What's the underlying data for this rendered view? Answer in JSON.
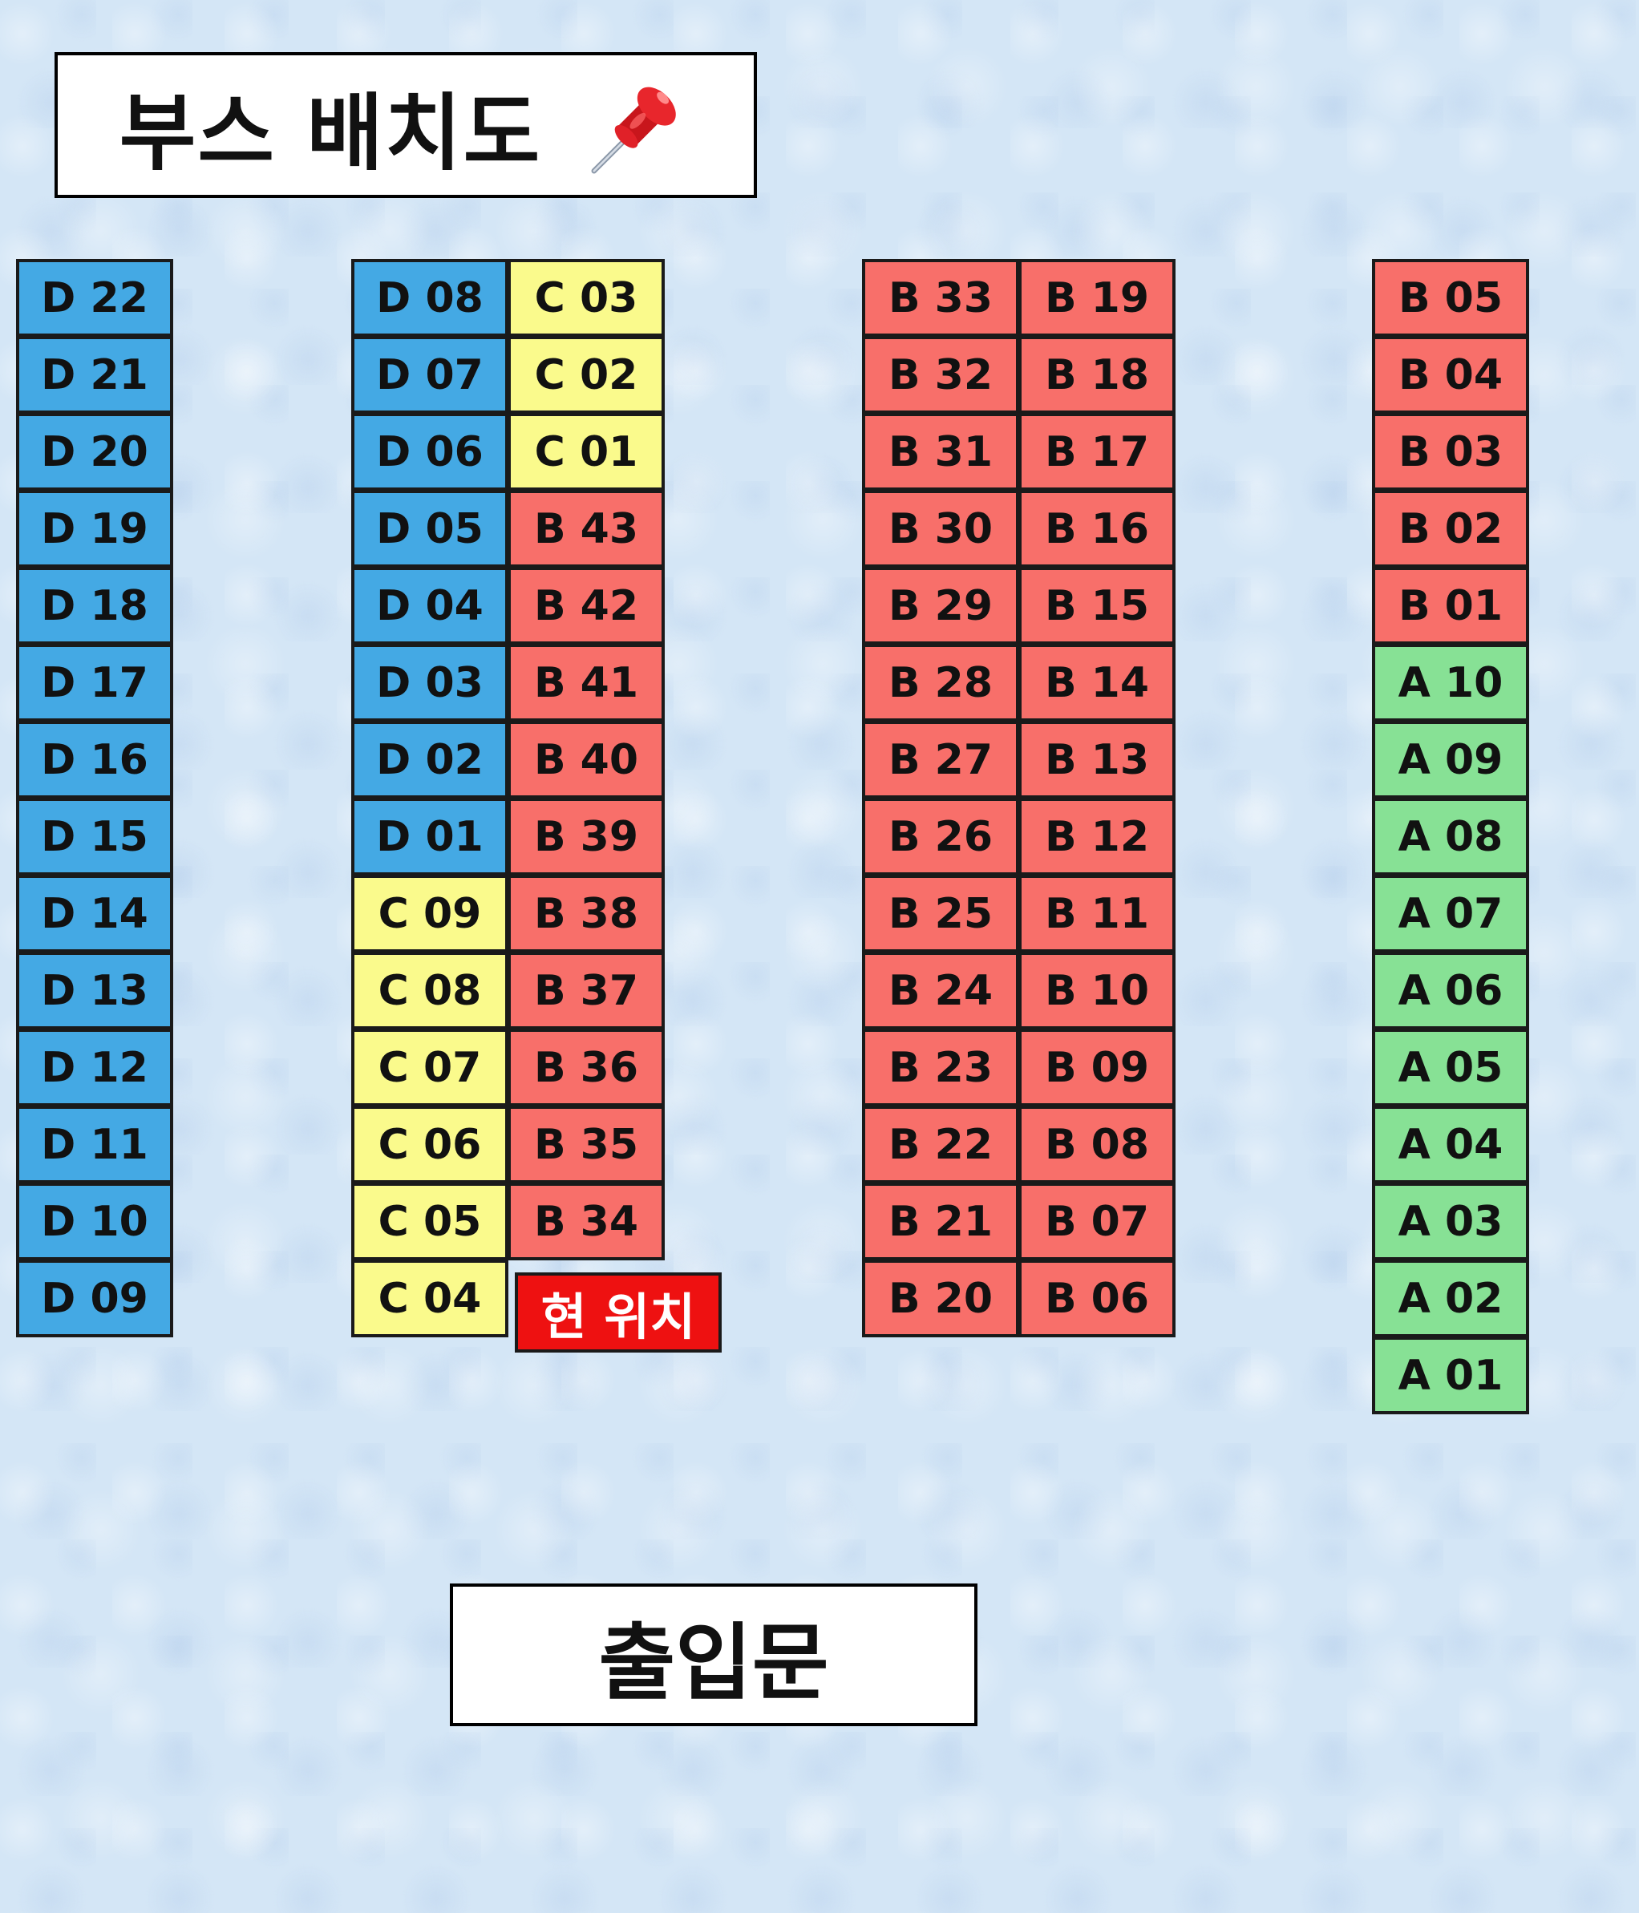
{
  "title": "부스 배치도",
  "title_icon": "pushpin-icon",
  "here_label": "현 위치",
  "entrance_label": "출입문",
  "colors": {
    "D": "#44a9e4",
    "C": "#fafa8c",
    "B": "#f86f6a",
    "A": "#87e195",
    "here": "#ee1111"
  },
  "booth_columns": [
    {
      "name": "column-1",
      "booths": [
        "D 22",
        "D 21",
        "D 20",
        "D 19",
        "D 18",
        "D 17",
        "D 16",
        "D 15",
        "D 14",
        "D 13",
        "D 12",
        "D 11",
        "D 10",
        "D 09"
      ]
    },
    {
      "name": "column-2",
      "booths": [
        "D 08",
        "D 07",
        "D 06",
        "D 05",
        "D 04",
        "D 03",
        "D 02",
        "D 01",
        "C 09",
        "C 08",
        "C 07",
        "C 06",
        "C 05",
        "C 04"
      ]
    },
    {
      "name": "column-3",
      "booths": [
        "C 03",
        "C 02",
        "C 01",
        "B 43",
        "B 42",
        "B 41",
        "B 40",
        "B 39",
        "B 38",
        "B 37",
        "B 36",
        "B 35",
        "B 34"
      ]
    },
    {
      "name": "column-4",
      "booths": [
        "B 33",
        "B 32",
        "B 31",
        "B 30",
        "B 29",
        "B 28",
        "B 27",
        "B 26",
        "B 25",
        "B 24",
        "B 23",
        "B 22",
        "B 21",
        "B 20"
      ]
    },
    {
      "name": "column-5",
      "booths": [
        "B 19",
        "B 18",
        "B 17",
        "B 16",
        "B 15",
        "B 14",
        "B 13",
        "B 12",
        "B 11",
        "B 10",
        "B 09",
        "B 08",
        "B 07",
        "B 06"
      ]
    },
    {
      "name": "column-6",
      "booths": [
        "B 05",
        "B 04",
        "B 03",
        "B 02",
        "B 01",
        "A 10",
        "A 09",
        "A 08",
        "A 07",
        "A 06",
        "A 05",
        "A 04",
        "A 03",
        "A 02",
        "A 01"
      ]
    }
  ]
}
